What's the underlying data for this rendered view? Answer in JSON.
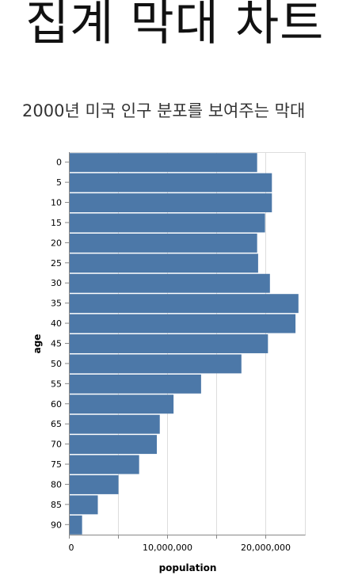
{
  "page": {
    "title": "집계 막대 차트",
    "subtitle": "2000년 미국 인구 분포를 보여주는 막대"
  },
  "chart_data": {
    "type": "bar",
    "orientation": "horizontal",
    "categories": [
      "0",
      "5",
      "10",
      "15",
      "20",
      "25",
      "30",
      "35",
      "40",
      "45",
      "50",
      "55",
      "60",
      "65",
      "70",
      "75",
      "80",
      "85",
      "90"
    ],
    "values": [
      19100000,
      20600000,
      20600000,
      19900000,
      19100000,
      19200000,
      20400000,
      23300000,
      23000000,
      20200000,
      17500000,
      13400000,
      10600000,
      9200000,
      8900000,
      7100000,
      5000000,
      2900000,
      1300000
    ],
    "xlabel": "population",
    "ylabel": "age",
    "xlim": [
      0,
      24000000
    ],
    "x_ticks": [
      0,
      5000000,
      10000000,
      15000000,
      20000000
    ],
    "x_tick_labels": [
      "0",
      "",
      "10,000,000",
      "",
      "20,000,000"
    ],
    "grid": true,
    "bar_color": "#4c78a8"
  }
}
